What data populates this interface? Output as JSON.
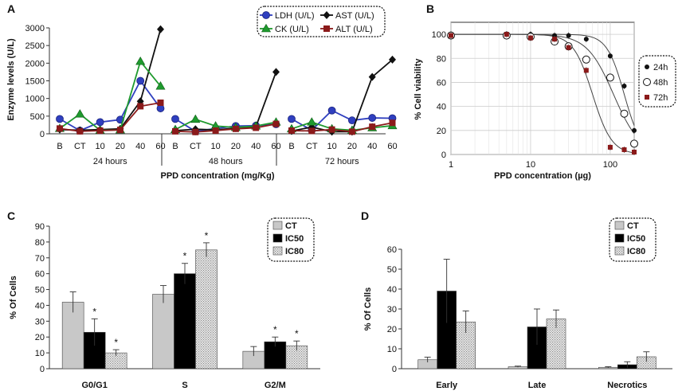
{
  "chart_data": [
    {
      "panel": "A",
      "type": "line",
      "ylabel": "Enzyme levels (U/L)",
      "xlabel": "PPD concentration (mg/Kg)",
      "ylim": [
        0,
        3000
      ],
      "yticks": [
        "0",
        "500",
        "1000",
        "1500",
        "2000",
        "2500",
        "3000"
      ],
      "categories": [
        "B",
        "CT",
        "10",
        "20",
        "40",
        "60"
      ],
      "groups": [
        "24 hours",
        "48 hours",
        "72 hours"
      ],
      "legend": [
        "LDH (U/L)",
        "AST (U/L)",
        "CK (U/L)",
        "ALT (U/L)"
      ],
      "series": [
        {
          "name": "LDH (U/L)",
          "color": "#2f3fbf",
          "marker": "circle",
          "values": [
            [
              420,
              90,
              330,
              400,
              1500,
              720
            ],
            [
              420,
              70,
              150,
              220,
              230,
              270
            ],
            [
              420,
              100,
              660,
              380,
              450,
              440
            ]
          ]
        },
        {
          "name": "AST (U/L)",
          "color": "#111111",
          "marker": "diamond",
          "values": [
            [
              120,
              100,
              120,
              140,
              920,
              2960
            ],
            [
              90,
              130,
              110,
              160,
              200,
              1750
            ],
            [
              80,
              190,
              60,
              60,
              1610,
              2100
            ]
          ]
        },
        {
          "name": "CK (U/L)",
          "color": "#1f9a2e",
          "marker": "triangle",
          "values": [
            [
              150,
              560,
              100,
              110,
              2050,
              1350
            ],
            [
              120,
              410,
              220,
              180,
              220,
              330
            ],
            [
              140,
              330,
              140,
              100,
              170,
              230
            ]
          ]
        },
        {
          "name": "ALT (U/L)",
          "color": "#8b1a1a",
          "marker": "square",
          "values": [
            [
              150,
              70,
              90,
              110,
              780,
              880
            ],
            [
              70,
              50,
              90,
              140,
              170,
              280
            ],
            [
              90,
              80,
              120,
              60,
              200,
              310
            ]
          ]
        }
      ]
    },
    {
      "panel": "B",
      "type": "scatter",
      "ylabel": "% Cell viability",
      "xlabel": "PPD concentration (µg)",
      "xscale": "log",
      "xlim": [
        1,
        200
      ],
      "xticks": [
        "1",
        "10",
        "100"
      ],
      "ylim": [
        0,
        110
      ],
      "yticks": [
        "0",
        "20",
        "40",
        "60",
        "80",
        "100"
      ],
      "legend": [
        "24h",
        "48h",
        "72h"
      ],
      "series": [
        {
          "name": "24h",
          "marker": "filled-circle",
          "x": [
            1,
            5,
            10,
            20,
            30,
            50,
            100,
            150,
            200
          ],
          "y": [
            100,
            100,
            100,
            99,
            99,
            96,
            82,
            57,
            20
          ]
        },
        {
          "name": "48h",
          "marker": "open-circle",
          "x": [
            1,
            5,
            10,
            20,
            30,
            50,
            100,
            150,
            200
          ],
          "y": [
            99,
            99,
            98,
            94,
            90,
            79,
            64,
            34,
            9
          ]
        },
        {
          "name": "72h",
          "marker": "square",
          "x": [
            1,
            5,
            10,
            20,
            30,
            50,
            100,
            150,
            200
          ],
          "y": [
            99,
            100,
            97,
            96,
            89,
            70,
            6,
            4,
            2
          ]
        }
      ]
    },
    {
      "panel": "C",
      "type": "bar",
      "ylabel": "% Of Cells",
      "ylim": [
        0,
        90
      ],
      "yticks": [
        "0",
        "10",
        "20",
        "30",
        "40",
        "50",
        "60",
        "70",
        "80",
        "90"
      ],
      "categories": [
        "G0/G1",
        "S",
        "G2/M"
      ],
      "legend": [
        "CT",
        "IC50",
        "IC80"
      ],
      "series": [
        {
          "name": "CT",
          "values": [
            42,
            47,
            11
          ],
          "errors": [
            6.5,
            5.5,
            3
          ]
        },
        {
          "name": "IC50",
          "values": [
            23,
            60,
            17
          ],
          "errors": [
            8.5,
            6.5,
            3
          ]
        },
        {
          "name": "IC80",
          "values": [
            10,
            75,
            14.5
          ],
          "errors": [
            2,
            4.5,
            3
          ]
        }
      ],
      "significance": [
        [
          false,
          true,
          true
        ],
        [
          false,
          true,
          true
        ],
        [
          false,
          true,
          true
        ]
      ],
      "sig_label": "*"
    },
    {
      "panel": "D",
      "type": "bar",
      "ylabel": "% Of Cells",
      "ylim": [
        0,
        60
      ],
      "yticks": [
        "0",
        "10",
        "20",
        "30",
        "40",
        "50",
        "60"
      ],
      "categories": [
        "Early",
        "Late",
        "Necrotics"
      ],
      "legend": [
        "CT",
        "IC50",
        "IC80"
      ],
      "series": [
        {
          "name": "CT",
          "values": [
            4.5,
            1,
            0.7
          ],
          "errors": [
            1.3,
            0.3,
            0.3
          ]
        },
        {
          "name": "IC50",
          "values": [
            39,
            21,
            2
          ],
          "errors": [
            16,
            9,
            1.5
          ]
        },
        {
          "name": "IC80",
          "values": [
            23.5,
            25,
            6
          ],
          "errors": [
            5.5,
            4.5,
            2.5
          ]
        }
      ]
    }
  ]
}
